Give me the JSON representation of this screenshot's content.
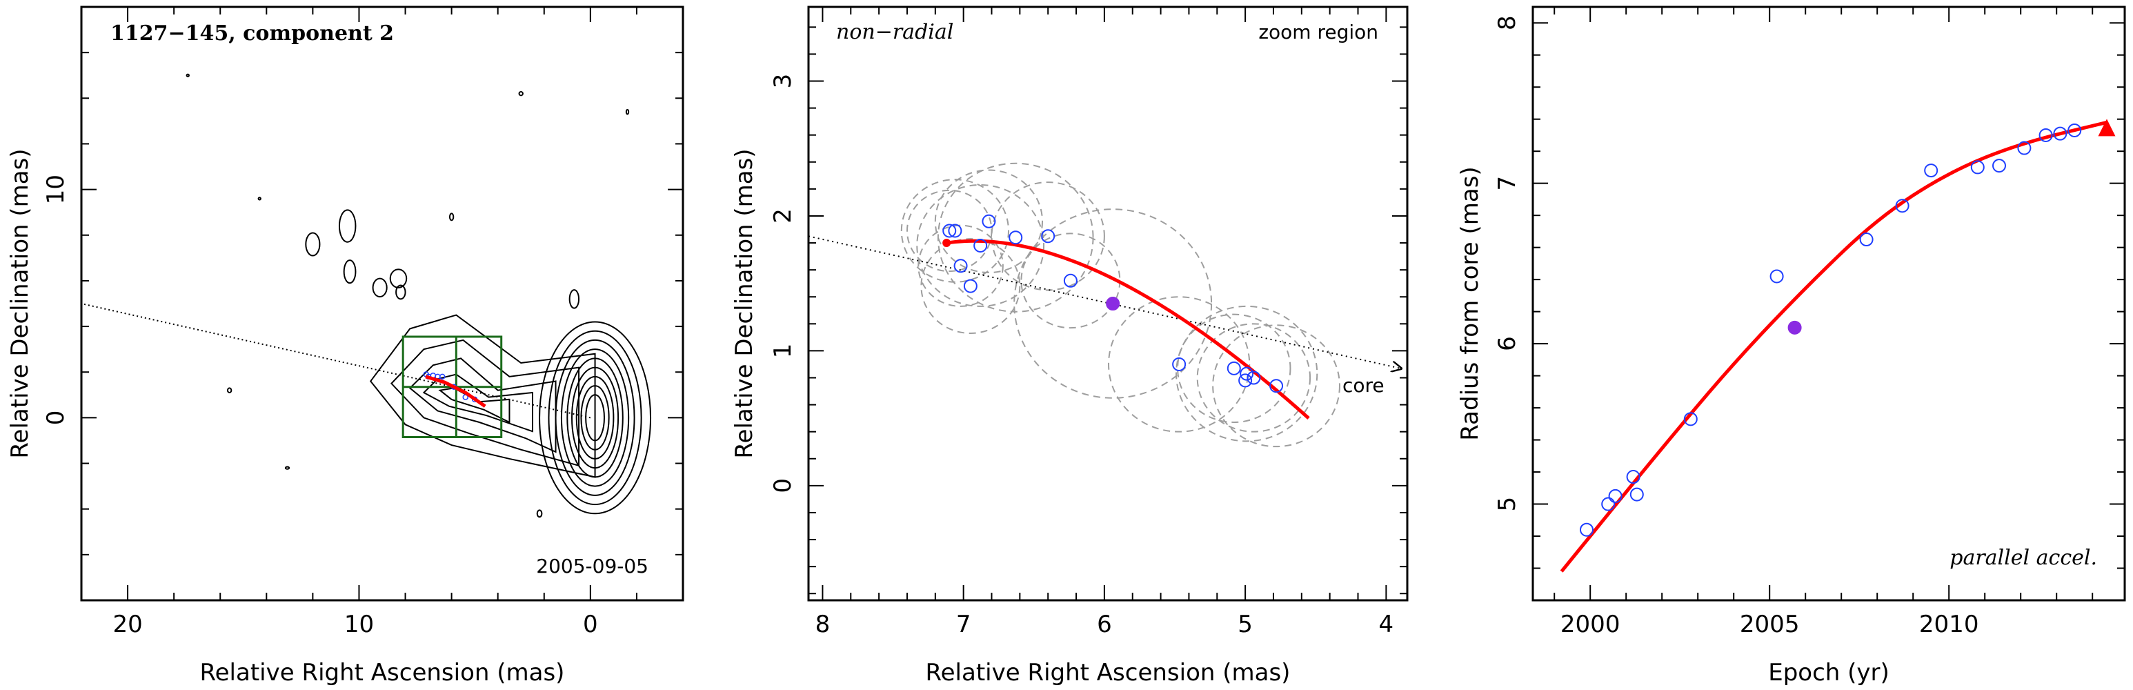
{
  "chart_data": [
    {
      "type": "contour",
      "title": "1127−145, component 2",
      "date": "2005-09-05",
      "xlabel": "Relative Right Ascension (mas)",
      "ylabel": "Relative Declination (mas)",
      "xlim": [
        22,
        -4
      ],
      "ylim": [
        -8,
        18
      ],
      "xticks": [
        20,
        10,
        0
      ],
      "yticks": [
        0,
        10
      ],
      "colors": {
        "contour": "#000000",
        "box": "#1a6b1a",
        "track": "#ff0000"
      }
    },
    {
      "type": "scatter",
      "annotations": {
        "top_left": "non−radial",
        "top_right": "zoom region",
        "core": "core"
      },
      "xlabel": "Relative Right Ascension (mas)",
      "ylabel": "Relative Declination (mas)",
      "xlim": [
        8.1,
        3.85
      ],
      "ylim": [
        -0.85,
        3.55
      ],
      "xticks": [
        8,
        7,
        6,
        5,
        4
      ],
      "yticks": [
        0,
        1,
        2,
        3
      ],
      "points": [
        {
          "x": 7.1,
          "y": 1.89
        },
        {
          "x": 7.06,
          "y": 1.89
        },
        {
          "x": 7.02,
          "y": 1.63
        },
        {
          "x": 6.95,
          "y": 1.48
        },
        {
          "x": 6.88,
          "y": 1.78
        },
        {
          "x": 6.82,
          "y": 1.96
        },
        {
          "x": 6.63,
          "y": 1.84
        },
        {
          "x": 6.4,
          "y": 1.85
        },
        {
          "x": 6.24,
          "y": 1.52
        },
        {
          "x": 5.47,
          "y": 0.9
        },
        {
          "x": 5.08,
          "y": 0.87
        },
        {
          "x": 4.99,
          "y": 0.83
        },
        {
          "x": 4.94,
          "y": 0.8
        },
        {
          "x": 5.0,
          "y": 0.78
        },
        {
          "x": 4.78,
          "y": 0.74
        }
      ],
      "highlight_point": {
        "x": 5.94,
        "y": 1.35
      },
      "uncertainty_circles": [
        {
          "x": 7.1,
          "y": 1.89,
          "r": 0.3
        },
        {
          "x": 7.06,
          "y": 1.89,
          "r": 0.38
        },
        {
          "x": 7.02,
          "y": 1.63,
          "r": 0.3
        },
        {
          "x": 6.95,
          "y": 1.48,
          "r": 0.35
        },
        {
          "x": 6.88,
          "y": 1.78,
          "r": 0.45
        },
        {
          "x": 6.82,
          "y": 1.96,
          "r": 0.38
        },
        {
          "x": 6.63,
          "y": 1.84,
          "r": 0.55
        },
        {
          "x": 6.4,
          "y": 1.85,
          "r": 0.4
        },
        {
          "x": 6.24,
          "y": 1.52,
          "r": 0.35
        },
        {
          "x": 5.94,
          "y": 1.35,
          "r": 0.7
        },
        {
          "x": 5.47,
          "y": 0.9,
          "r": 0.5
        },
        {
          "x": 5.08,
          "y": 0.87,
          "r": 0.4
        },
        {
          "x": 4.99,
          "y": 0.83,
          "r": 0.5
        },
        {
          "x": 4.94,
          "y": 0.8,
          "r": 0.4
        },
        {
          "x": 4.78,
          "y": 0.74,
          "r": 0.45
        }
      ],
      "track": {
        "x_start": 7.12,
        "y_start": 1.8,
        "x_end": 4.55,
        "y_end": 0.5
      },
      "dotted_line": {
        "x_start": 8.1,
        "y_start": 1.85,
        "x_end": 3.9,
        "y_end": 0.87
      },
      "colors": {
        "points": "#1f3fff",
        "highlight": "#8a2be2",
        "track": "#ff0000",
        "circles": "#9e9e9e"
      }
    },
    {
      "type": "scatter",
      "annotation": "parallel accel.",
      "xlabel": "Epoch (yr)",
      "ylabel": "Radius from core (mas)",
      "xlim": [
        1998.4,
        2014.9
      ],
      "ylim": [
        4.4,
        8.1
      ],
      "xticks": [
        2000,
        2005,
        2010
      ],
      "yticks": [
        5,
        6,
        7,
        8
      ],
      "points": [
        {
          "x": 1999.9,
          "y": 4.84
        },
        {
          "x": 2000.5,
          "y": 5.0
        },
        {
          "x": 2000.7,
          "y": 5.05
        },
        {
          "x": 2001.2,
          "y": 5.17
        },
        {
          "x": 2001.3,
          "y": 5.06
        },
        {
          "x": 2002.8,
          "y": 5.53
        },
        {
          "x": 2005.2,
          "y": 6.42
        },
        {
          "x": 2007.7,
          "y": 6.65
        },
        {
          "x": 2008.7,
          "y": 6.86
        },
        {
          "x": 2009.5,
          "y": 7.08
        },
        {
          "x": 2010.8,
          "y": 7.1
        },
        {
          "x": 2011.4,
          "y": 7.11
        },
        {
          "x": 2012.1,
          "y": 7.22
        },
        {
          "x": 2012.7,
          "y": 7.3
        },
        {
          "x": 2013.1,
          "y": 7.31
        },
        {
          "x": 2013.5,
          "y": 7.33
        }
      ],
      "highlight_point": {
        "x": 2005.7,
        "y": 6.1
      },
      "fit_curve": {
        "x": [
          1999.2,
          2002,
          2004,
          2006,
          2008,
          2010,
          2012,
          2014.4
        ],
        "y": [
          4.58,
          5.35,
          5.88,
          6.35,
          6.78,
          7.07,
          7.25,
          7.38
        ]
      },
      "colors": {
        "points": "#1f3fff",
        "highlight": "#8a2be2",
        "fit": "#ff0000"
      }
    }
  ]
}
